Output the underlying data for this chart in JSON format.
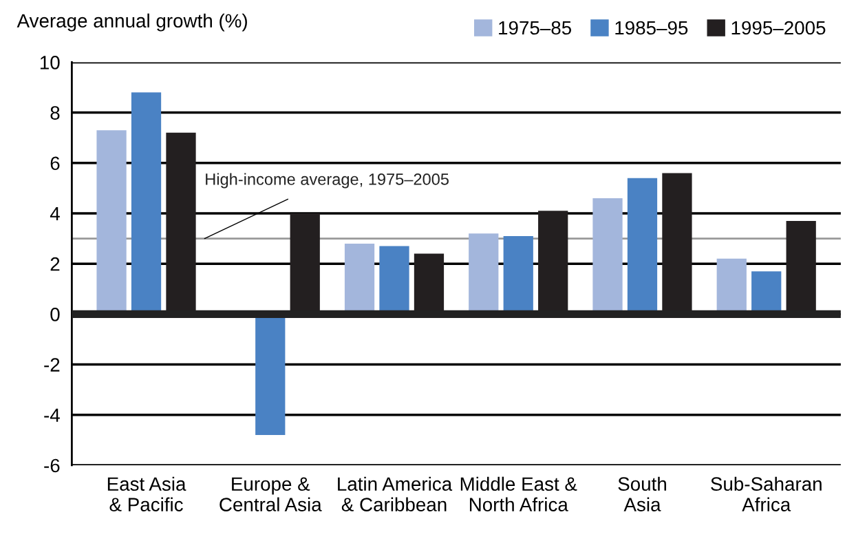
{
  "chart_data": {
    "type": "bar",
    "ylabel": "Average annual growth (%)",
    "categories": [
      "East Asia\n& Pacific",
      "Europe &\nCentral Asia",
      "Latin America\n& Caribbean",
      "Middle East &\nNorth Africa",
      "South\nAsia",
      "Sub-Saharan\nAfrica"
    ],
    "series": [
      {
        "name": "1975–85",
        "color": "#a3b6dc",
        "values": [
          7.3,
          null,
          2.8,
          3.2,
          4.6,
          2.2
        ]
      },
      {
        "name": "1985–95",
        "color": "#4a82c4",
        "values": [
          8.8,
          -4.8,
          2.7,
          3.1,
          5.4,
          1.7
        ]
      },
      {
        "name": "1995–2005",
        "color": "#231f20",
        "values": [
          7.2,
          4.0,
          2.4,
          4.1,
          5.6,
          3.7
        ]
      }
    ],
    "ylim": [
      -6,
      10
    ],
    "yticks": [
      -6,
      -4,
      -2,
      0,
      2,
      4,
      6,
      8,
      10
    ],
    "grid": "y",
    "legend": "top right",
    "ref_lines": [
      {
        "axis": "y",
        "value": 3.0,
        "label": "High-income average, 1975–2005",
        "color": "#999999"
      }
    ]
  }
}
